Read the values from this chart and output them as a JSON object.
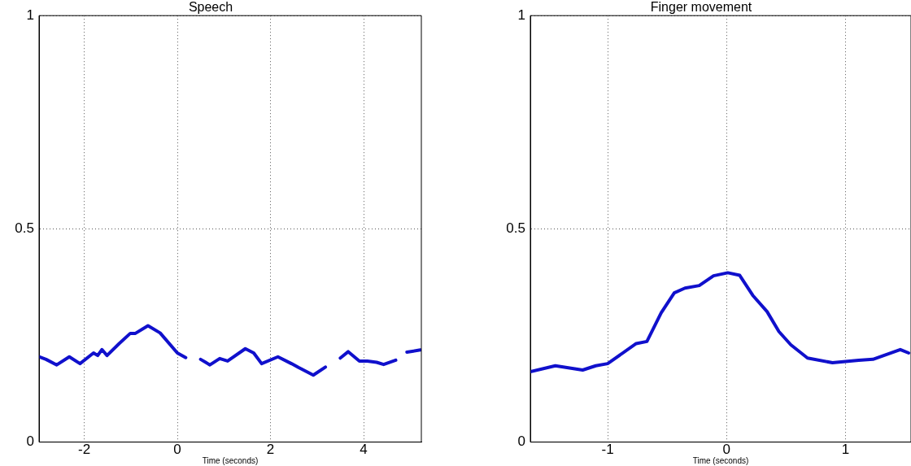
{
  "chart_data": [
    {
      "type": "line",
      "title": "Speech",
      "xlabel": "Time (seconds)",
      "xlim": [
        -2.97,
        5.24
      ],
      "xticks": [
        -2,
        0,
        2,
        4
      ],
      "ylim": [
        0,
        1
      ],
      "yticks": [
        0,
        0.5,
        1
      ],
      "grid": true,
      "legend": false,
      "line_style": "solid",
      "marker": "none",
      "x": [
        -2.97,
        -2.82,
        -2.59,
        -2.32,
        -2.09,
        -1.8,
        -1.71,
        -1.62,
        -1.51,
        -1.25,
        -1.01,
        -0.9,
        -0.63,
        -0.37,
        0.0,
        0.18,
        0.34,
        0.5,
        0.7,
        0.91,
        1.08,
        1.46,
        1.64,
        1.81,
        2.16,
        2.45,
        2.6,
        2.92,
        3.18,
        3.34,
        3.5,
        3.67,
        3.91,
        4.08,
        4.28,
        4.43,
        4.69,
        4.81,
        4.93,
        5.22
      ],
      "series": [
        {
          "color": "#1010cc",
          "values": [
            0.2,
            0.194,
            0.181,
            0.2,
            0.184,
            0.209,
            0.203,
            0.217,
            0.203,
            0.231,
            0.255,
            0.255,
            0.273,
            0.256,
            0.209,
            0.198,
            null,
            0.194,
            0.181,
            0.196,
            0.19,
            0.219,
            0.209,
            0.184,
            0.2,
            0.184,
            0.175,
            0.157,
            0.176,
            null,
            0.197,
            0.212,
            0.19,
            0.19,
            0.187,
            0.182,
            0.192,
            null,
            0.211,
            0.216
          ]
        }
      ]
    },
    {
      "type": "line",
      "title": "Finger movement",
      "xlabel": "Time (seconds)",
      "xlim": [
        -1.65,
        1.55
      ],
      "xticks": [
        -1,
        0,
        1
      ],
      "ylim": [
        0,
        1
      ],
      "yticks": [
        0,
        0.5,
        1
      ],
      "grid": true,
      "legend": false,
      "line_style": "solid",
      "marker": "none",
      "x": [
        -1.65,
        -1.44,
        -1.21,
        -1.1,
        -1.0,
        -0.76,
        -0.67,
        -0.55,
        -0.44,
        -0.35,
        -0.23,
        -0.11,
        0.01,
        0.11,
        0.22,
        0.34,
        0.44,
        0.54,
        0.68,
        0.89,
        1.11,
        1.23,
        1.46,
        1.53
      ],
      "series": [
        {
          "color": "#1010cc",
          "values": [
            0.165,
            0.179,
            0.169,
            0.179,
            0.184,
            0.231,
            0.236,
            0.303,
            0.35,
            0.361,
            0.367,
            0.39,
            0.397,
            0.391,
            0.344,
            0.306,
            0.259,
            0.228,
            0.197,
            0.186,
            0.192,
            0.194,
            0.217,
            0.209
          ]
        }
      ]
    }
  ]
}
